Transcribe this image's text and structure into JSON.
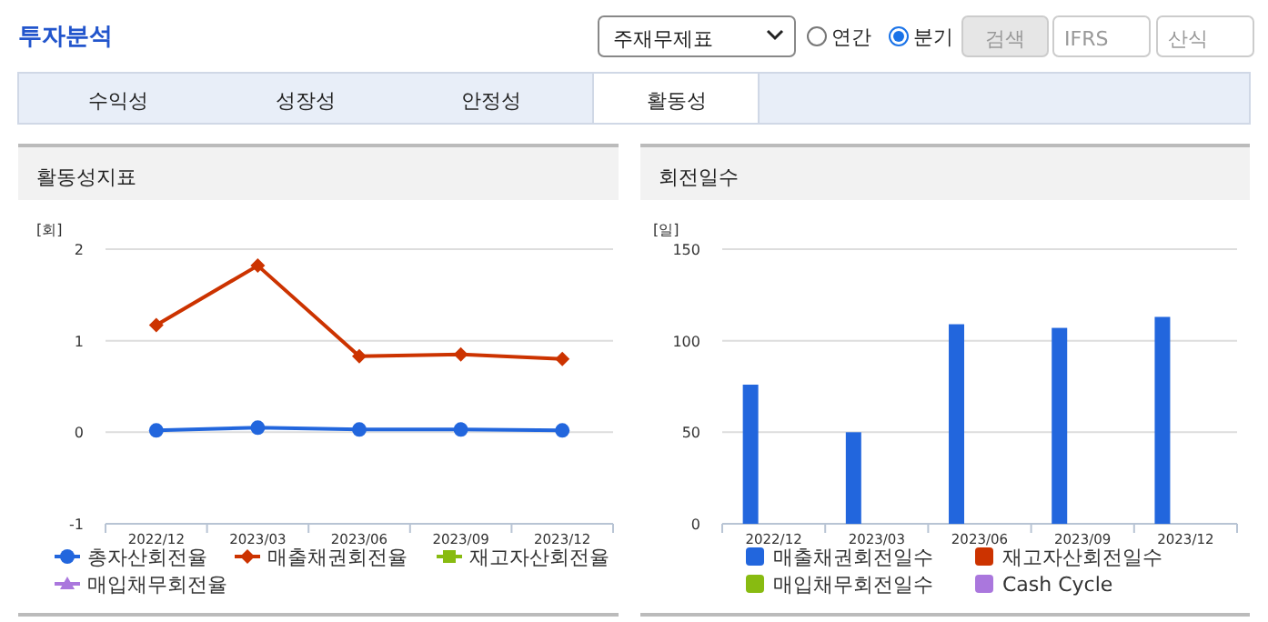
{
  "chart_data": [
    {
      "type": "other",
      "title": "투자분석",
      "annotations": [
        "주재무제표",
        "연간",
        "분기",
        "검색",
        "IFRS",
        "산식",
        "수익성",
        "성장성",
        "안정성",
        "활동성"
      ]
    },
    {
      "type": "line",
      "title": "활동성지표",
      "ylabel": "[회]",
      "categories": [
        "2022/12",
        "2023/03",
        "2023/06",
        "2023/09",
        "2023/12"
      ],
      "ylim": [
        -1,
        2
      ],
      "yticks": [
        -1,
        0,
        1,
        2
      ],
      "grid": "y",
      "legend": "bottom",
      "series": [
        {
          "name": "총자산회전율",
          "color": "#2266dd",
          "marker": "circle",
          "values": [
            0.02,
            0.05,
            0.03,
            0.03,
            0.02
          ]
        },
        {
          "name": "매출채권회전율",
          "color": "#cc3300",
          "marker": "diamond",
          "values": [
            1.17,
            1.82,
            0.83,
            0.85,
            0.8
          ]
        },
        {
          "name": "재고자산회전율",
          "color": "#88bb11",
          "marker": "square",
          "values": [
            null,
            null,
            null,
            null,
            null
          ]
        },
        {
          "name": "매입채무회전율",
          "color": "#aa77dd",
          "marker": "triangle",
          "values": [
            null,
            null,
            null,
            null,
            null
          ]
        }
      ]
    },
    {
      "type": "bar",
      "title": "회전일수",
      "ylabel": "[일]",
      "categories": [
        "2022/12",
        "2023/03",
        "2023/06",
        "2023/09",
        "2023/12"
      ],
      "ylim": [
        0,
        150
      ],
      "yticks": [
        0,
        50,
        100,
        150
      ],
      "grid": "y",
      "legend": "bottom",
      "series": [
        {
          "name": "매출채권회전일수",
          "color": "#2266dd",
          "values": [
            76,
            50,
            109,
            107,
            113
          ]
        },
        {
          "name": "재고자산회전일수",
          "color": "#cc3300",
          "values": [
            null,
            null,
            null,
            null,
            null
          ]
        },
        {
          "name": "매입채무회전일수",
          "color": "#88bb11",
          "values": [
            null,
            null,
            null,
            null,
            null
          ]
        },
        {
          "name": "Cash Cycle",
          "color": "#aa77dd",
          "values": [
            null,
            null,
            null,
            null,
            null
          ]
        }
      ]
    }
  ]
}
